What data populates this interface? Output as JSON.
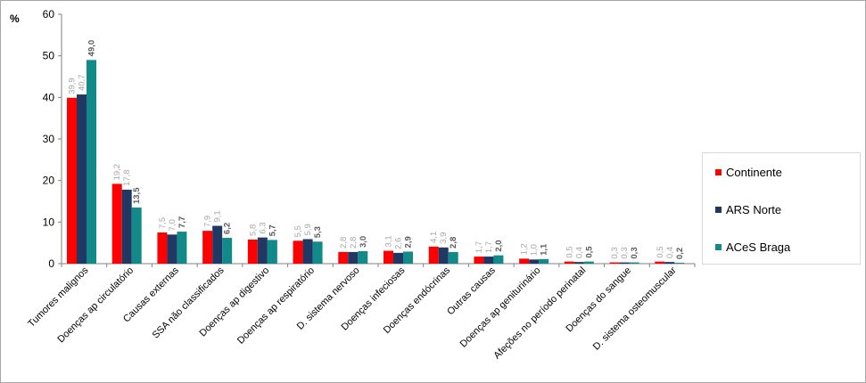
{
  "chart_data": {
    "type": "bar",
    "ylabel": "%",
    "ylim": [
      0,
      60
    ],
    "yticks": [
      0,
      10,
      20,
      30,
      40,
      50,
      60
    ],
    "grid": false,
    "legend_position": "right",
    "categories": [
      "Tumores malignos",
      "Doenças ap circulatório",
      "Causas externas",
      "SSA não classificados",
      "Doenças ap digestivo",
      "Doenças ap respiratório",
      "D. sistema nervoso",
      "Doenças infeciosas",
      "Doenças endócrinas",
      "Outras causas",
      "Doenças ap geniturinário",
      "Afeções no período perinatal",
      "Doenças do sangue",
      "D. sistema osteomuscular"
    ],
    "series": [
      {
        "name": "Continente",
        "color": "#ff0000",
        "values": [
          39.9,
          19.2,
          7.5,
          7.9,
          5.8,
          5.5,
          2.8,
          3.1,
          4.1,
          1.7,
          1.2,
          0.5,
          0.3,
          0.5
        ],
        "labels": [
          "39,9",
          "19,2",
          "7,5",
          "7,9",
          "5,8",
          "5,5",
          "2,8",
          "3,1",
          "4,1",
          "1,7",
          "1,2",
          "0,5",
          "0,3",
          "0,5"
        ]
      },
      {
        "name": "ARS Norte",
        "color": "#1f3864",
        "values": [
          40.7,
          17.8,
          7.0,
          9.1,
          6.3,
          5.9,
          2.8,
          2.6,
          3.9,
          1.7,
          1.0,
          0.4,
          0.3,
          0.4
        ],
        "labels": [
          "40,7",
          "17,8",
          "7,0",
          "9,1",
          "6,3",
          "5,9",
          "2,8",
          "2,6",
          "3,9",
          "1,7",
          "1,0",
          "0,4",
          "0,3",
          "0,4"
        ]
      },
      {
        "name": "ACeS Braga",
        "color": "#138a8a",
        "values": [
          49.0,
          13.5,
          7.7,
          6.2,
          5.7,
          5.3,
          3.0,
          2.9,
          2.8,
          2.0,
          1.1,
          0.5,
          0.3,
          0.2
        ],
        "labels": [
          "49,0",
          "13,5",
          "7,7",
          "6,2",
          "5,7",
          "5,3",
          "3,0",
          "2,9",
          "2,8",
          "2,0",
          "1,1",
          "0,5",
          "0,3",
          "0,2"
        ]
      }
    ],
    "label_colors": [
      "#a6a6a6",
      "#a6a6a6",
      "#595959"
    ]
  }
}
